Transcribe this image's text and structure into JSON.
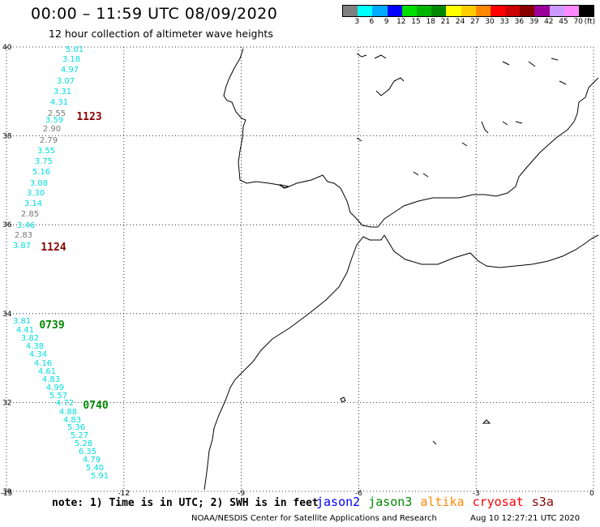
{
  "header": {
    "title": "00:00 – 11:59 UTC 08/09/2020",
    "subtitle": "12 hour collection of altimeter wave heights"
  },
  "legend": {
    "unit": "(ft)",
    "items": [
      {
        "label": "3",
        "color": "#7f7f7f"
      },
      {
        "label": "6",
        "color": "#00ffff"
      },
      {
        "label": "9",
        "color": "#00aaff"
      },
      {
        "label": "12",
        "color": "#0000ff"
      },
      {
        "label": "15",
        "color": "#00dd00"
      },
      {
        "label": "18",
        "color": "#00b400"
      },
      {
        "label": "21",
        "color": "#008800"
      },
      {
        "label": "24",
        "color": "#ffff00"
      },
      {
        "label": "27",
        "color": "#ffcc00"
      },
      {
        "label": "30",
        "color": "#ff8800"
      },
      {
        "label": "33",
        "color": "#ff0000"
      },
      {
        "label": "36",
        "color": "#cc0000"
      },
      {
        "label": "39",
        "color": "#880000"
      },
      {
        "label": "42",
        "color": "#990099"
      },
      {
        "label": "45",
        "color": "#cc99ff"
      },
      {
        "label": "70",
        "color": "#ff88ff"
      },
      {
        "label": "",
        "color": "#000000"
      }
    ]
  },
  "axes": {
    "lon_labels": [
      "-15",
      "-12",
      "-9",
      "-6",
      "-3",
      "0"
    ],
    "lat_labels": [
      "40",
      "38",
      "36",
      "34",
      "32",
      "30"
    ],
    "lon_values": [
      -15,
      -12,
      -9,
      -6,
      -3,
      0
    ],
    "lat_values": [
      40,
      38,
      36,
      34,
      32,
      30
    ]
  },
  "observations": [
    {
      "v": "5.01",
      "c": "#00dddd"
    },
    {
      "v": "3.18",
      "c": "#00dddd"
    },
    {
      "v": "4.97",
      "c": "#00dddd"
    },
    {
      "v": "3.07",
      "c": "#00dddd"
    },
    {
      "v": "3.31",
      "c": "#00dddd"
    },
    {
      "v": "4.31",
      "c": "#00dddd"
    },
    {
      "v": "2.55",
      "c": "#777777"
    },
    {
      "v": "3.59",
      "c": "#00dddd"
    },
    {
      "v": "2.90",
      "c": "#777777"
    },
    {
      "v": "2.79",
      "c": "#777777"
    },
    {
      "v": "3.55",
      "c": "#00dddd"
    },
    {
      "v": "3.75",
      "c": "#00dddd"
    },
    {
      "v": "5.16",
      "c": "#00dddd"
    },
    {
      "v": "3.08",
      "c": "#00dddd"
    },
    {
      "v": "3.30",
      "c": "#00dddd"
    },
    {
      "v": "3.14",
      "c": "#00dddd"
    },
    {
      "v": "2.85",
      "c": "#777777"
    },
    {
      "v": "3.46",
      "c": "#00dddd"
    },
    {
      "v": "2.83",
      "c": "#777777"
    },
    {
      "v": "3.87",
      "c": "#00dddd"
    },
    {
      "v": "3.81",
      "c": "#00dddd"
    },
    {
      "v": "4.41",
      "c": "#00dddd"
    },
    {
      "v": "3.82",
      "c": "#00dddd"
    },
    {
      "v": "4.38",
      "c": "#00dddd"
    },
    {
      "v": "4.34",
      "c": "#00dddd"
    },
    {
      "v": "4.16",
      "c": "#00dddd"
    },
    {
      "v": "4.61",
      "c": "#00dddd"
    },
    {
      "v": "4.83",
      "c": "#00dddd"
    },
    {
      "v": "4.99",
      "c": "#00dddd"
    },
    {
      "v": "5.57",
      "c": "#00dddd"
    },
    {
      "v": "4.72",
      "c": "#00dddd"
    },
    {
      "v": "4.88",
      "c": "#00dddd"
    },
    {
      "v": "4.83",
      "c": "#00dddd"
    },
    {
      "v": "5.36",
      "c": "#00dddd"
    },
    {
      "v": "5.27",
      "c": "#00dddd"
    },
    {
      "v": "5.28",
      "c": "#00dddd"
    },
    {
      "v": "6.35",
      "c": "#00dddd"
    },
    {
      "v": "4.79",
      "c": "#00dddd"
    },
    {
      "v": "5.40",
      "c": "#00dddd"
    },
    {
      "v": "5.91",
      "c": "#00dddd"
    }
  ],
  "pass_labels": [
    {
      "text": "1123",
      "color": "#880000"
    },
    {
      "text": "1124",
      "color": "#880000"
    },
    {
      "text": "0739",
      "color": "#008800"
    },
    {
      "text": "0740",
      "color": "#008800"
    }
  ],
  "footer": {
    "note": "note: 1) Time is in UTC; 2) SWH is in feet",
    "satellites": [
      {
        "name": "jason2",
        "color": "#0000ff"
      },
      {
        "name": "jason3",
        "color": "#008800"
      },
      {
        "name": "altika",
        "color": "#ff8800"
      },
      {
        "name": "cryosat",
        "color": "#ff0000"
      },
      {
        "name": "s3a",
        "color": "#880000"
      }
    ],
    "credit": "NOAA/NESDIS Center for Satellite Applications and Research",
    "timestamp": "Aug 10 12:27:21 UTC 2020"
  }
}
